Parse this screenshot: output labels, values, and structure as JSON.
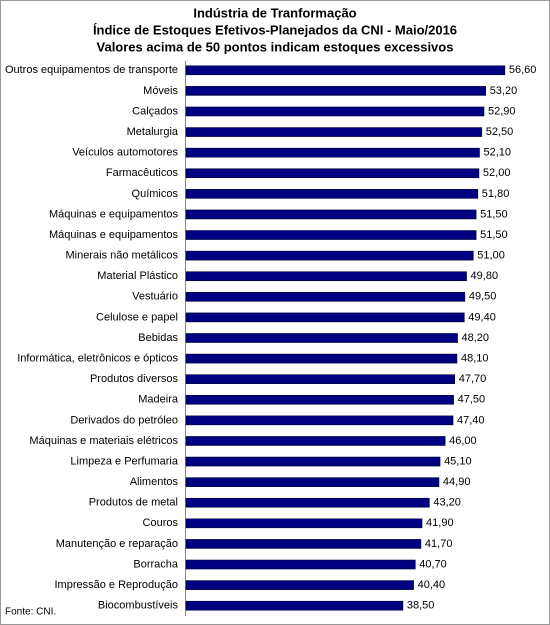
{
  "chart_data": {
    "type": "bar",
    "orientation": "horizontal",
    "title": "Indústria de Tranformação",
    "subtitle": [
      "Índice de Estoques Efetivos-Planejados da CNI - Maio/2016",
      "Valores acima de 50 pontos indicam estoques excessivos"
    ],
    "categories": [
      "Outros equipamentos de transporte",
      "Móveis",
      "Calçados",
      "Metalurgia",
      "Veículos automotores",
      "Farmacêuticos",
      "Químicos",
      "Máquinas e equipamentos",
      "Máquinas e equipamentos",
      "Minerais não metálicos",
      "Material Plástico",
      "Vestuário",
      "Celulose e papel",
      "Bebidas",
      "Informática, eletrônicos e ópticos",
      "Produtos diversos",
      "Madeira",
      "Derivados do petróleo",
      "Máquinas e materiais elétricos",
      "Limpeza e Perfumaria",
      "Alimentos",
      "Produtos de metal",
      "Couros",
      "Manutenção e reparação",
      "Borracha",
      "Impressão e Reprodução",
      "Biocombustíveis"
    ],
    "values": [
      56.6,
      53.2,
      52.9,
      52.5,
      52.1,
      52.0,
      51.8,
      51.5,
      51.5,
      51.0,
      49.8,
      49.5,
      49.4,
      48.2,
      48.1,
      47.7,
      47.5,
      47.4,
      46.0,
      45.1,
      44.9,
      43.2,
      41.9,
      41.7,
      40.7,
      40.4,
      38.5
    ],
    "value_labels": [
      "56,60",
      "53,20",
      "52,90",
      "52,50",
      "52,10",
      "52,00",
      "51,80",
      "51,50",
      "51,50",
      "51,00",
      "49,80",
      "49,50",
      "49,40",
      "48,20",
      "48,10",
      "47,70",
      "47,50",
      "47,40",
      "46,00",
      "45,10",
      "44,90",
      "43,20",
      "41,90",
      "41,70",
      "40,70",
      "40,40",
      "38,50"
    ],
    "color": "#000080",
    "xlim": [
      0,
      60
    ],
    "source": "Fonte: CNI."
  }
}
